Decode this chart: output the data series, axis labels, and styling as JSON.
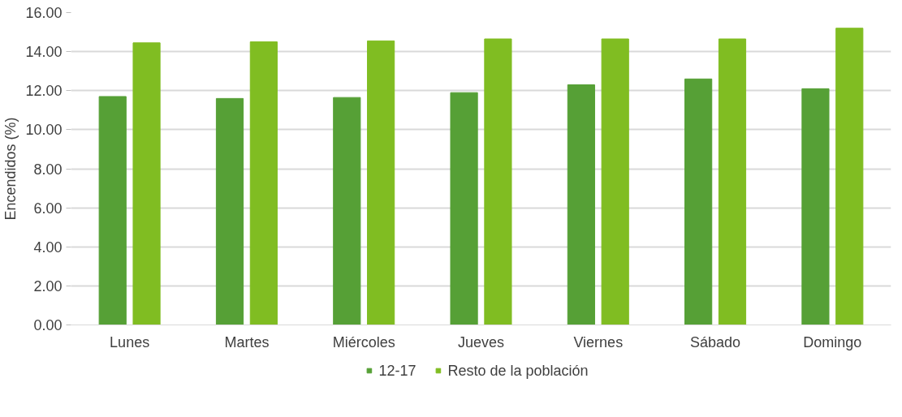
{
  "chart_data": {
    "type": "bar",
    "ylabel": "Encendidos (%)",
    "categories": [
      "Lunes",
      "Martes",
      "Miércoles",
      "Jueves",
      "Viernes",
      "Sábado",
      "Domingo"
    ],
    "series": [
      {
        "name": "12-17",
        "color": "#56a036",
        "values": [
          11.7,
          11.6,
          11.65,
          11.9,
          12.3,
          12.6,
          12.1
        ]
      },
      {
        "name": "Resto de la población",
        "color": "#80bd22",
        "values": [
          14.45,
          14.5,
          14.55,
          14.65,
          14.65,
          14.65,
          15.2
        ]
      }
    ],
    "ylim": [
      0,
      16
    ],
    "yticks": [
      {
        "value": 0,
        "label": "0.00"
      },
      {
        "value": 2,
        "label": "2.00"
      },
      {
        "value": 4,
        "label": "4.00"
      },
      {
        "value": 6,
        "label": "6.00"
      },
      {
        "value": 8,
        "label": "8.00"
      },
      {
        "value": 10,
        "label": "10.00"
      },
      {
        "value": 12,
        "label": "12.00"
      },
      {
        "value": 14,
        "label": "14.00"
      },
      {
        "value": 16,
        "label": "16.00"
      }
    ],
    "grid": "y",
    "legend": "bottom"
  }
}
